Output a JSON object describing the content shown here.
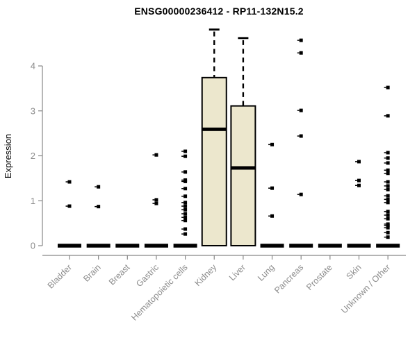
{
  "title": "ENSG00000236412 - RP11-132N15.2",
  "chart_data": {
    "type": "boxplot",
    "title": "ENSG00000236412 - RP11-132N15.2",
    "ylabel": "Expression",
    "xlabel": "",
    "ylim": [
      0,
      4.9
    ],
    "yticks": [
      0,
      1,
      2,
      3,
      4
    ],
    "grid": false,
    "legend": false,
    "categories": [
      "Bladder",
      "Brain",
      "Breast",
      "Gastric",
      "Hematopoietic cells",
      "Kidney",
      "Liver",
      "Lung",
      "Pancreas",
      "Prostate",
      "Skin",
      "Unknown / Other"
    ],
    "series": [
      {
        "category": "Bladder",
        "whisker_low": 0,
        "q1": 0,
        "median": 0,
        "q3": 0,
        "whisker_high": 0,
        "outliers": [
          1.42,
          0.88
        ]
      },
      {
        "category": "Brain",
        "whisker_low": 0,
        "q1": 0,
        "median": 0,
        "q3": 0,
        "whisker_high": 0,
        "outliers": [
          1.31,
          0.87
        ]
      },
      {
        "category": "Breast",
        "whisker_low": 0,
        "q1": 0,
        "median": 0,
        "q3": 0,
        "whisker_high": 0,
        "outliers": []
      },
      {
        "category": "Gastric",
        "whisker_low": 0,
        "q1": 0,
        "median": 0,
        "q3": 0,
        "whisker_high": 0,
        "outliers": [
          2.02,
          1.02,
          0.94
        ]
      },
      {
        "category": "Hematopoietic cells",
        "whisker_low": 0,
        "q1": 0,
        "median": 0,
        "q3": 0,
        "whisker_high": 0,
        "outliers": [
          2.1,
          1.99,
          1.64,
          1.46,
          1.43,
          1.27,
          1.1,
          0.96,
          0.88,
          0.8,
          0.71,
          0.63,
          0.56,
          0.37,
          0.26
        ]
      },
      {
        "category": "Kidney",
        "whisker_low": 0,
        "q1": 0,
        "median": 2.59,
        "q3": 3.74,
        "whisker_high": 4.81,
        "outliers": []
      },
      {
        "category": "Liver",
        "whisker_low": 0,
        "q1": 0,
        "median": 1.73,
        "q3": 3.11,
        "whisker_high": 4.62,
        "outliers": []
      },
      {
        "category": "Lung",
        "whisker_low": 0,
        "q1": 0,
        "median": 0,
        "q3": 0,
        "whisker_high": 0,
        "outliers": [
          2.25,
          1.28,
          0.66
        ]
      },
      {
        "category": "Pancreas",
        "whisker_low": 0,
        "q1": 0,
        "median": 0,
        "q3": 0,
        "whisker_high": 0,
        "outliers": [
          4.57,
          4.29,
          3.01,
          2.44,
          1.14
        ]
      },
      {
        "category": "Prostate",
        "whisker_low": 0,
        "q1": 0,
        "median": 0,
        "q3": 0,
        "whisker_high": 0,
        "outliers": []
      },
      {
        "category": "Skin",
        "whisker_low": 0,
        "q1": 0,
        "median": 0,
        "q3": 0,
        "whisker_high": 0,
        "outliers": [
          1.87,
          1.45,
          1.34
        ]
      },
      {
        "category": "Unknown / Other",
        "whisker_low": 0,
        "q1": 0,
        "median": 0,
        "q3": 0,
        "whisker_high": 0,
        "outliers": [
          3.52,
          2.89,
          2.07,
          1.95,
          1.84,
          1.68,
          1.61,
          1.42,
          1.33,
          1.25,
          1.11,
          1.03,
          0.96,
          0.76,
          0.68,
          0.6,
          0.48,
          0.45,
          0.4,
          0.29,
          0.19
        ]
      }
    ]
  },
  "colors": {
    "background": "#ffffff",
    "box_fill": "#ece7cd",
    "box_stroke": "#000000",
    "median": "#000000",
    "whisker": "#000000",
    "outlier": "#000000",
    "axis_line": "#878787",
    "axis_text": "#8c8c8c",
    "title_text": "#000000"
  }
}
